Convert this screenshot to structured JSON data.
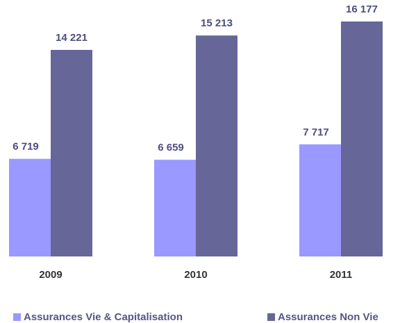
{
  "chart_data": {
    "type": "bar",
    "categories": [
      "2009",
      "2010",
      "2011"
    ],
    "series": [
      {
        "name": "Assurances Vie & Capitalisation",
        "color": "#9999ff",
        "values": [
          6719,
          6659,
          7717
        ],
        "value_labels": [
          "6 719",
          "6 659",
          "7 717"
        ]
      },
      {
        "name": "Assurances Non Vie",
        "color": "#666699",
        "values": [
          14221,
          15213,
          16177
        ],
        "value_labels": [
          "14 221",
          "15 213",
          "16 177"
        ]
      }
    ]
  }
}
